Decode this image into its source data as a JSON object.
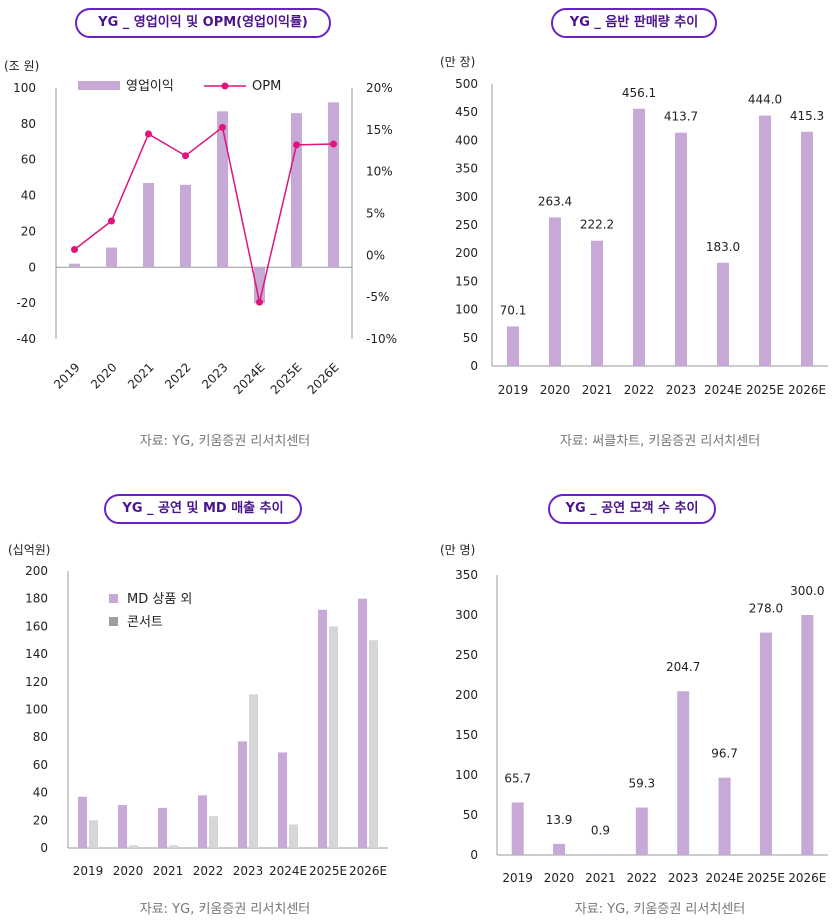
{
  "colors": {
    "bar": "#c7a9d8",
    "bar2": "#d6d6d6",
    "bar2_legend": "#9e9e9e",
    "line": "#e0147c",
    "pill_border": "#6b21c8",
    "pill_text": "#4a148c",
    "axis": "#999999"
  },
  "chart_data": [
    {
      "type": "bar+line",
      "title": "YG _ 영업이익 및 OPM(영업이익률)",
      "unit": "(조 원)",
      "categories": [
        "2019",
        "2020",
        "2021",
        "2022",
        "2023",
        "2024E",
        "2025E",
        "2026E"
      ],
      "series": [
        {
          "name": "영업이익",
          "type": "bar",
          "axis": "left",
          "values": [
            2,
            11,
            47,
            46,
            87,
            -20,
            86,
            92
          ]
        },
        {
          "name": "OPM",
          "type": "line",
          "axis": "right",
          "values": [
            0.7,
            4.1,
            14.5,
            11.9,
            15.3,
            -5.6,
            13.2,
            13.3
          ]
        }
      ],
      "ylim": [
        -40,
        100
      ],
      "yticks": [
        -40,
        -20,
        0,
        20,
        40,
        60,
        80,
        100
      ],
      "y2lim": [
        -10,
        20
      ],
      "y2ticks": [
        -10,
        -5,
        0,
        5,
        10,
        15,
        20
      ],
      "y2tick_labels": [
        "-10%",
        "-5%",
        "0%",
        "5%",
        "10%",
        "15%",
        "20%"
      ],
      "source": "자료: YG, 키움증권 리서치센터"
    },
    {
      "type": "bar",
      "title": "YG _ 음반 판매량 추이",
      "unit": "(만 장)",
      "categories": [
        "2019",
        "2020",
        "2021",
        "2022",
        "2023",
        "2024E",
        "2025E",
        "2026E"
      ],
      "values": [
        70.1,
        263.4,
        222.2,
        456.1,
        413.7,
        183.0,
        444.0,
        415.3
      ],
      "labels": [
        "70.1",
        "263.4",
        "222.2",
        "456.1",
        "413.7",
        "183.0",
        "444.0",
        "415.3"
      ],
      "ylim": [
        0,
        500
      ],
      "yticks": [
        0,
        50,
        100,
        150,
        200,
        250,
        300,
        350,
        400,
        450,
        500
      ],
      "source": "자료: 써클차트, 키움증권 리서치센터"
    },
    {
      "type": "bar",
      "title": "YG _ 공연 및 MD 매출 추이",
      "unit": "(십억원)",
      "categories": [
        "2019",
        "2020",
        "2021",
        "2022",
        "2023",
        "2024E",
        "2025E",
        "2026E"
      ],
      "series": [
        {
          "name": "MD 상품 외",
          "values": [
            37,
            31,
            29,
            38,
            77,
            69,
            172,
            180
          ]
        },
        {
          "name": "콘서트",
          "values": [
            20,
            2,
            2,
            23,
            111,
            17,
            160,
            150
          ]
        }
      ],
      "ylim": [
        0,
        200
      ],
      "yticks": [
        0,
        20,
        40,
        60,
        80,
        100,
        120,
        140,
        160,
        180,
        200
      ],
      "source": "자료: YG, 키움증권 리서치센터"
    },
    {
      "type": "bar",
      "title": "YG _ 공연 모객 수 추이",
      "unit": "(만 명)",
      "categories": [
        "2019",
        "2020",
        "2021",
        "2022",
        "2023",
        "2024E",
        "2025E",
        "2026E"
      ],
      "values": [
        65.7,
        13.9,
        0.9,
        59.3,
        204.7,
        96.7,
        278.0,
        300.0
      ],
      "labels": [
        "65.7",
        "13.9",
        "0.9",
        "59.3",
        "204.7",
        "96.7",
        "278.0",
        "300.0"
      ],
      "ylim": [
        0,
        350
      ],
      "yticks": [
        0,
        50,
        100,
        150,
        200,
        250,
        300,
        350
      ],
      "source": "자료: YG, 키움증권 리서치센터"
    }
  ]
}
